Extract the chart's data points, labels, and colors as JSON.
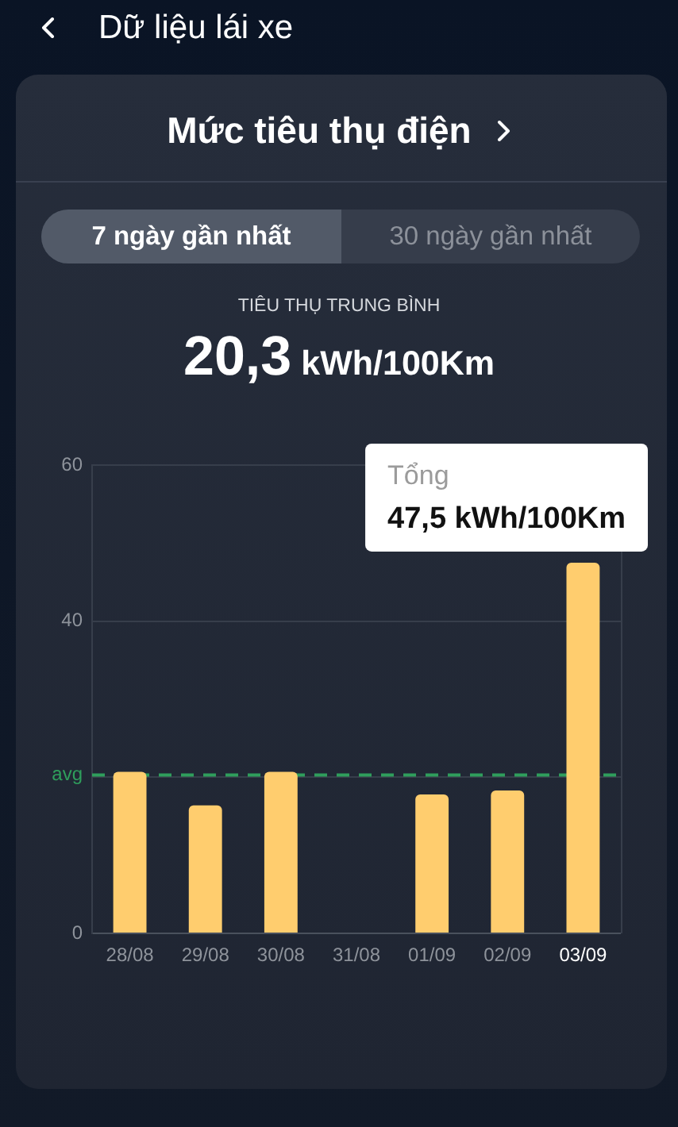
{
  "chart_data": {
    "type": "bar",
    "title": "Mức tiêu thụ điện",
    "categories": [
      "28/08",
      "29/08",
      "30/08",
      "31/08",
      "01/09",
      "02/09",
      "03/09"
    ],
    "values": [
      20.7,
      16.4,
      20.7,
      null,
      17.8,
      18.3,
      47.5
    ],
    "color": "#ffcd6e",
    "ylim": [
      0,
      60
    ],
    "yticks": [
      0,
      {
        "value": 20,
        "label": null
      },
      40,
      60
    ],
    "grid": "y",
    "ref_lines": [
      {
        "axis": "y",
        "value": 20.3,
        "label": "avg",
        "color": "#2f9e5c",
        "line_style": "dashed"
      }
    ],
    "annotations": [
      "Dữ liệu lái xe",
      "7 ngày gần nhất",
      "30 ngày gần nhất",
      "TIÊU THỤ TRUNG BÌNH",
      "20,3 kWh/100Km",
      {
        "text": "Tổng\n47,5 kWh/100Km",
        "x": "03/09",
        "y": 47.5
      }
    ]
  }
}
